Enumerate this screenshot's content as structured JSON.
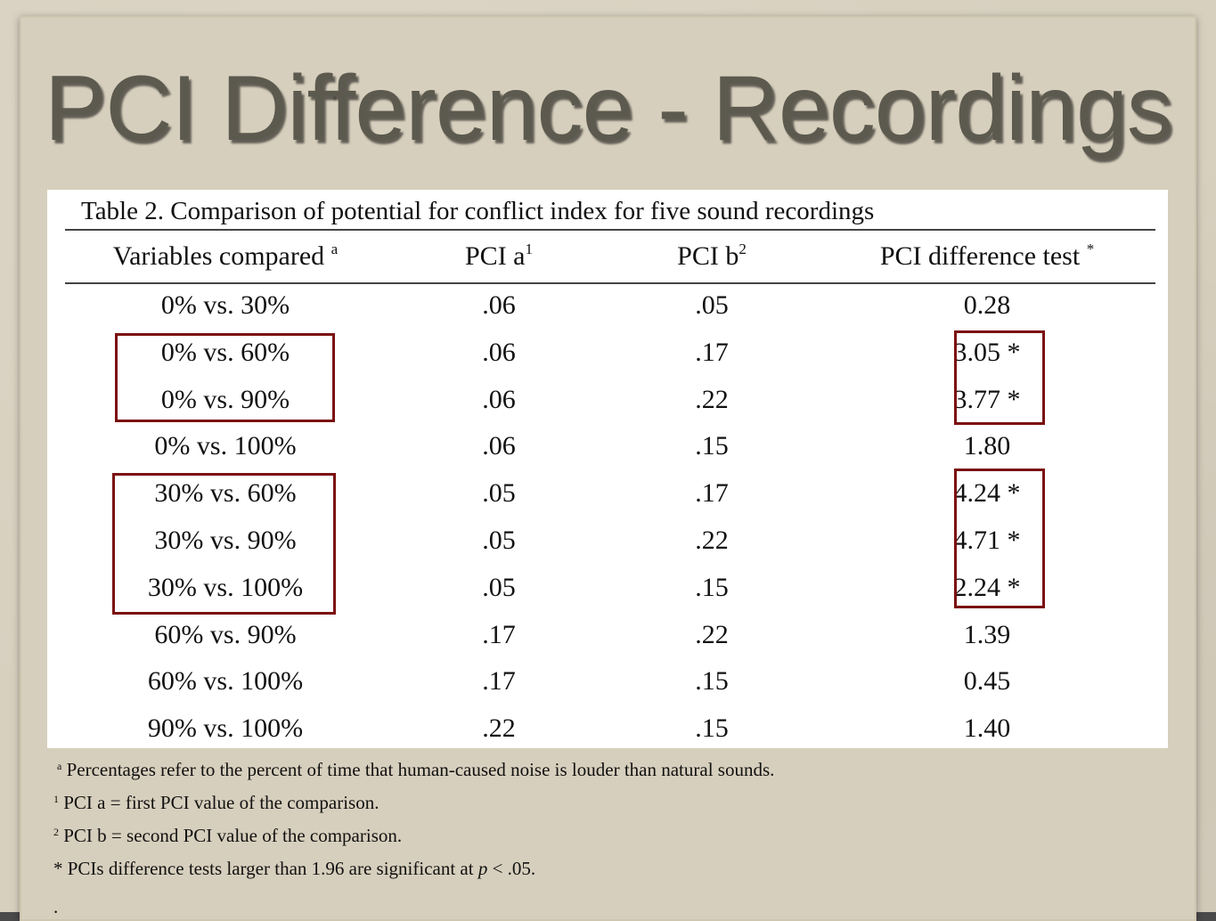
{
  "slide_title": "PCI Difference - Recordings",
  "table": {
    "caption": "Table 2. Comparison of potential for conflict index for five sound recordings",
    "headers": [
      {
        "text": "Variables compared",
        "sup": "a"
      },
      {
        "text": "PCI a",
        "sup": "1"
      },
      {
        "text": "PCI b",
        "sup": "2"
      },
      {
        "text": "PCI difference test",
        "sup": "*"
      }
    ],
    "rows": [
      [
        "0% vs. 30%",
        ".06",
        ".05",
        "0.28"
      ],
      [
        "0% vs. 60%",
        ".06",
        ".17",
        "3.05 *"
      ],
      [
        "0% vs. 90%",
        ".06",
        ".22",
        "3.77 *"
      ],
      [
        "0% vs. 100%",
        ".06",
        ".15",
        "1.80"
      ],
      [
        "30% vs. 60%",
        ".05",
        ".17",
        "4.24 *"
      ],
      [
        "30% vs. 90%",
        ".05",
        ".22",
        "4.71 *"
      ],
      [
        "30% vs. 100%",
        ".05",
        ".15",
        "2.24 *"
      ],
      [
        "60% vs. 90%",
        ".17",
        ".22",
        "1.39"
      ],
      [
        "60% vs. 100%",
        ".17",
        ".15",
        "0.45"
      ],
      [
        "90% vs. 100%",
        ".22",
        ".15",
        "1.40"
      ]
    ],
    "highlight_color": "#7b1010"
  },
  "footnotes": [
    {
      "sup": "a",
      "text": "Percentages refer to the percent of time that human-caused noise is louder than natural sounds."
    },
    {
      "sup": "1",
      "text": "PCI a = first PCI value of the comparison."
    },
    {
      "sup": "2",
      "text": "PCI b = second PCI value of the comparison."
    },
    {
      "sup": "",
      "text": "* PCIs difference tests larger than 1.96 are significant at",
      "italic": "p",
      "tail": " < .05."
    }
  ],
  "trailing_mark": "."
}
